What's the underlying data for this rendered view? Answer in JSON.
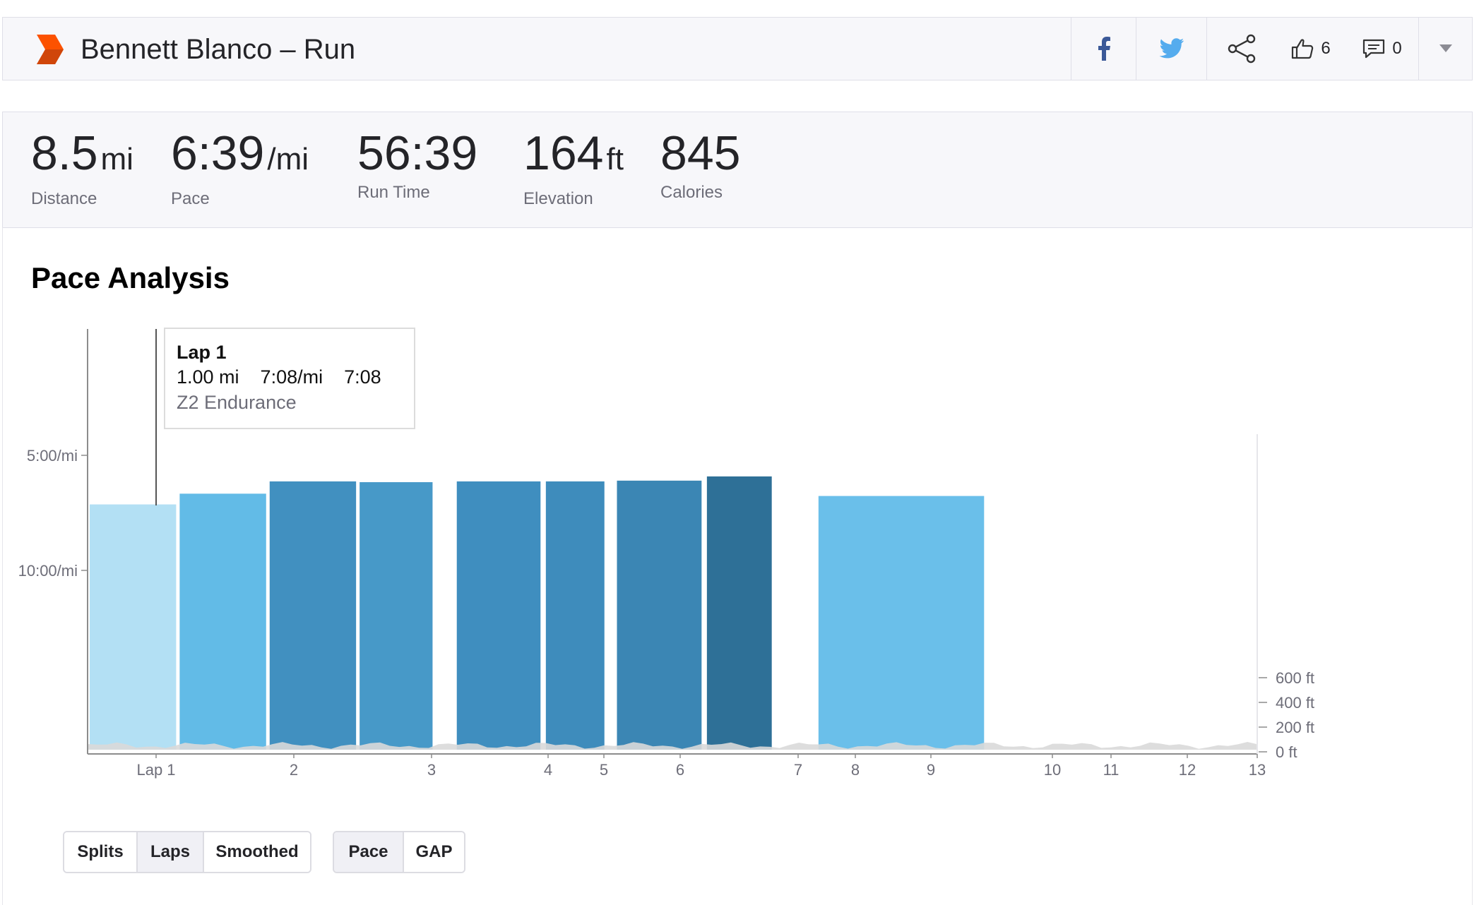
{
  "header": {
    "title": "Bennett Blanco – Run",
    "kudos_count": "6",
    "comments_count": "0",
    "icons": [
      "strava-logo",
      "facebook-icon",
      "twitter-icon",
      "share-icon",
      "thumbs-up-icon",
      "comment-icon",
      "caret-down-icon"
    ]
  },
  "stats": [
    {
      "value": "8.5",
      "unit": "mi",
      "label": "Distance"
    },
    {
      "value": "6:39",
      "unit": "/mi",
      "label": "Pace"
    },
    {
      "value": "56:39",
      "unit": "",
      "label": "Run Time"
    },
    {
      "value": "164",
      "unit": "ft",
      "label": "Elevation"
    },
    {
      "value": "845",
      "unit": "",
      "label": "Calories"
    }
  ],
  "section_title": "Pace Analysis",
  "tooltip": {
    "title": "Lap 1",
    "distance": "1.00 mi",
    "pace": "7:08/mi",
    "time": "7:08",
    "zone": "Z2 Endurance"
  },
  "chart_data": {
    "type": "bar",
    "x_range": [
      0,
      13
    ],
    "x_ticks": [
      {
        "value": 1,
        "label": "Lap 1"
      },
      {
        "value": 2,
        "label": "2"
      },
      {
        "value": 3,
        "label": "3"
      },
      {
        "value": 4,
        "label": "4"
      },
      {
        "value": 5,
        "label": "5"
      },
      {
        "value": 6,
        "label": "6"
      },
      {
        "value": 7,
        "label": "7"
      },
      {
        "value": 8,
        "label": "8"
      },
      {
        "value": 9,
        "label": "9"
      },
      {
        "value": 10,
        "label": "10"
      },
      {
        "value": 11,
        "label": "11"
      },
      {
        "value": 12,
        "label": "12"
      },
      {
        "value": 13,
        "label": "13"
      }
    ],
    "pace_axis_ticks": [
      "5:00/mi",
      "10:00/mi"
    ],
    "elevation_axis_ticks": [
      "600 ft",
      "400 ft",
      "200 ft",
      "0 ft"
    ],
    "laps": [
      {
        "label": "Lap 1",
        "pace": "7:08/mi"
      },
      {
        "label": "Lap 2",
        "pace": "6:40/mi"
      },
      {
        "label": "Lap 3",
        "pace": "6:08/mi"
      },
      {
        "label": "Lap 4",
        "pace": "6:10/mi"
      },
      {
        "label": "Lap 5",
        "pace": "6:08/mi"
      },
      {
        "label": "Lap 6",
        "pace": "6:08/mi"
      },
      {
        "label": "Lap 7",
        "pace": "6:06/mi"
      },
      {
        "label": "Lap 8",
        "pace": "5:55/mi"
      },
      {
        "label": "Lap 9",
        "pace": "6:46/mi"
      }
    ],
    "colors": {
      "lap_1": "#b3e0f4",
      "lap_2": "#62bbe7",
      "lap_3": "#4190c0",
      "lap_4": "#4799c8",
      "lap_5": "#3f8ebf",
      "lap_6": "#3e8cbc",
      "lap_7": "#3b86b4",
      "lap_8": "#2e7097",
      "lap_9": "#6abfea",
      "elevation": "#d9d9d9",
      "axis": "#8c8c8c"
    }
  },
  "controls": {
    "view_group": [
      "Splits",
      "Laps",
      "Smoothed"
    ],
    "view_active": "Laps",
    "metric_group": [
      "Pace",
      "GAP"
    ],
    "metric_active": "Pace"
  }
}
